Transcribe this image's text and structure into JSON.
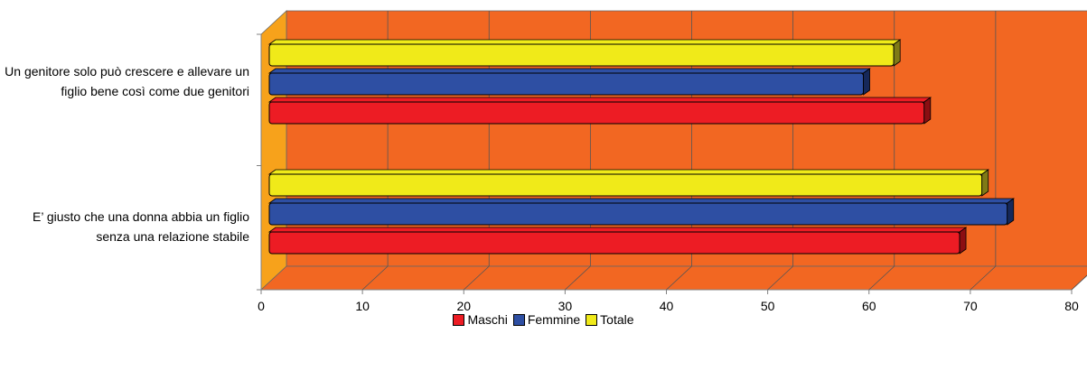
{
  "chart_data": {
    "type": "bar",
    "orientation": "horizontal",
    "three_d": true,
    "categories": [
      "Un genitore solo può crescere e allevare un figlio bene così come due genitori",
      "E’ giusto che una donna abbia un figlio senza una relazione stabile"
    ],
    "series": [
      {
        "name": "Maschi",
        "values": [
          65,
          68.5
        ],
        "color": "#ed1c24",
        "dark": "#8b0e12"
      },
      {
        "name": "Femmine",
        "values": [
          59,
          73.2
        ],
        "color": "#2e4fa3",
        "dark": "#16285a"
      },
      {
        "name": "Totale",
        "values": [
          62,
          70.7
        ],
        "color": "#f0ea19",
        "dark": "#7f7a16"
      }
    ],
    "xlim": [
      0,
      80
    ],
    "xticks": [
      "0",
      "10",
      "20",
      "30",
      "40",
      "50",
      "60",
      "70",
      "80"
    ],
    "grid": true,
    "legend_position": "bottom",
    "colors": {
      "wall": "#f26722",
      "side_wall": "#f7a21b"
    }
  }
}
